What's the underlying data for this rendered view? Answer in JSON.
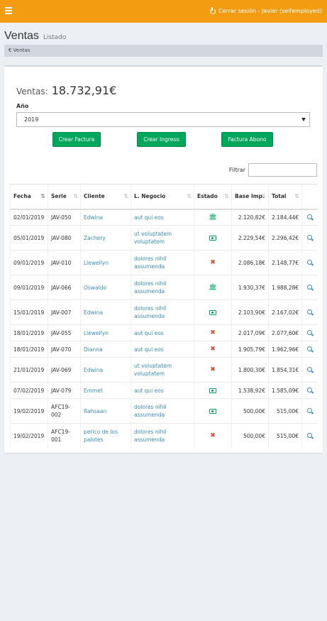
{
  "topbar": {
    "logout_label": "Cerrar sesión - Javier (selfemployed)"
  },
  "header": {
    "title": "Ventas",
    "subtitle": "Listado"
  },
  "breadcrumb": {
    "label": "€ Ventas"
  },
  "summary": {
    "label": "Ventas:",
    "amount": "18.732,91€"
  },
  "year": {
    "label": "Año",
    "value": "2019"
  },
  "buttons": {
    "create_invoice": "Crear Factura",
    "create_income": "Crear Ingreso",
    "credit_invoice": "Factura Abono"
  },
  "filter": {
    "label": "Filtrar",
    "value": ""
  },
  "table": {
    "headers": [
      "Fecha",
      "Serie",
      "Cliente",
      "L. Negocio",
      "Estado",
      "Base Imp.",
      "Total",
      ""
    ],
    "rows": [
      {
        "fecha": "02/01/2019",
        "serie": "JAV-050",
        "cliente": "Edwina",
        "negocio": "aut qui eos",
        "estado": "bank",
        "base": "2.120,82€",
        "total": "2.184,44€"
      },
      {
        "fecha": "05/01/2019",
        "serie": "JAV-080",
        "cliente": "Zachery",
        "negocio": "ut voluptatem voluptatem",
        "estado": "cash",
        "base": "2.229,54€",
        "total": "2.296,42€"
      },
      {
        "fecha": "09/01/2019",
        "serie": "JAV-010",
        "cliente": "Llewellyn",
        "negocio": "dolores nihil assumenda",
        "estado": "unpaid",
        "base": "2.086,18€",
        "total": "2.148,77€"
      },
      {
        "fecha": "09/01/2019",
        "serie": "JAV-066",
        "cliente": "Oswaldo",
        "negocio": "dolores nihil assumenda",
        "estado": "bank",
        "base": "1.930,37€",
        "total": "1.988,28€"
      },
      {
        "fecha": "15/01/2019",
        "serie": "JAV-007",
        "cliente": "Edwina",
        "negocio": "dolores nihil assumenda",
        "estado": "cash",
        "base": "2.103,90€",
        "total": "2.167,02€"
      },
      {
        "fecha": "18/01/2019",
        "serie": "JAV-055",
        "cliente": "Llewellyn",
        "negocio": "aut qui eos",
        "estado": "unpaid",
        "base": "2.017,09€",
        "total": "2.077,60€"
      },
      {
        "fecha": "18/01/2019",
        "serie": "JAV-070",
        "cliente": "Dianna",
        "negocio": "aut qui eos",
        "estado": "unpaid",
        "base": "1.905,79€",
        "total": "1.962,96€"
      },
      {
        "fecha": "21/01/2019",
        "serie": "JAV-069",
        "cliente": "Edwina",
        "negocio": "ut voluptatem voluptatem",
        "estado": "unpaid",
        "base": "1.800,30€",
        "total": "1.854,31€"
      },
      {
        "fecha": "07/02/2019",
        "serie": "JAV-079",
        "cliente": "Emmet",
        "negocio": "aut qui eos",
        "estado": "cash",
        "base": "1.538,92€",
        "total": "1.585,09€"
      },
      {
        "fecha": "19/02/2019",
        "serie": "AFC19-002",
        "cliente": "Rahsaan",
        "negocio": "dolores nihil assumenda",
        "estado": "cash",
        "base": "500,00€",
        "total": "515,00€"
      },
      {
        "fecha": "19/02/2019",
        "serie": "AFC19-001",
        "cliente": "perico de los palotes",
        "negocio": "dolores nihil assumenda",
        "estado": "unpaid",
        "base": "500,00€",
        "total": "515,00€"
      }
    ]
  },
  "colors": {
    "topbar": "#f39c12",
    "button": "#00a65a",
    "link": "#3c8dbc",
    "paid": "#00a65a",
    "unpaid": "#dd4b39"
  }
}
